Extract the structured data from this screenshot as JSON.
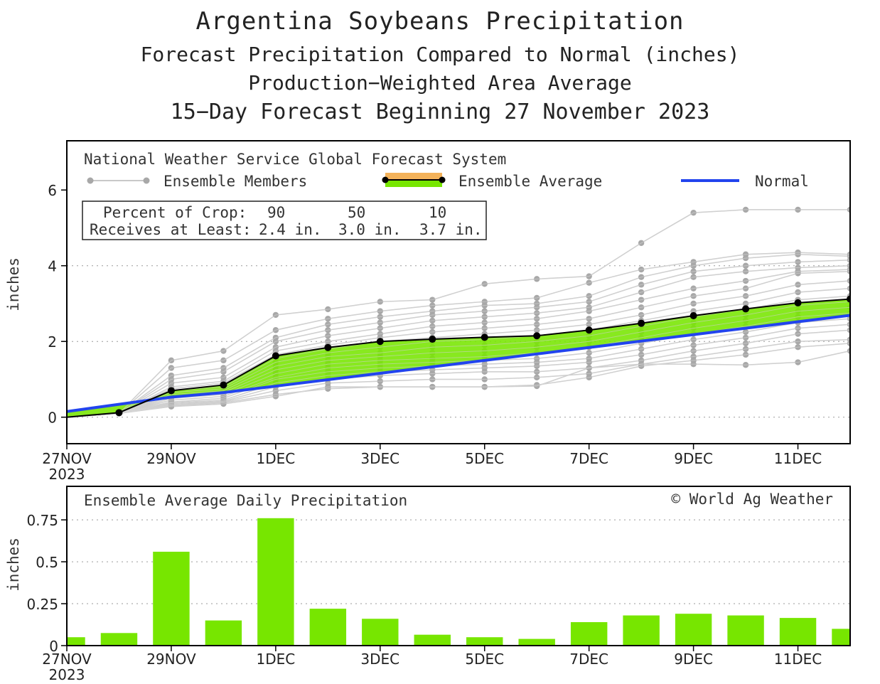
{
  "titles": {
    "main": "Argentina Soybeans Precipitation",
    "sub1": "Forecast Precipitation Compared to Normal (inches)",
    "sub2": "Production−Weighted Area Average",
    "sub3": "15−Day Forecast Beginning 27 November 2023"
  },
  "legend": {
    "source": "National Weather Service Global Forecast System",
    "members": "Ensemble Members",
    "average": "Ensemble Average",
    "normal": "Normal"
  },
  "crop_table": {
    "row1_label": "Percent of Crop:",
    "row2_label": "Receives at Least:",
    "percents": [
      "90",
      "50",
      "10"
    ],
    "amounts": [
      "2.4 in.",
      "3.0 in.",
      "3.7 in."
    ]
  },
  "colors": {
    "ensemble_fill": "#77e600",
    "normal": "#2244ee",
    "members": "#c8c8c8",
    "members_dots": "#a8a8a8",
    "average": "#000000",
    "bars": "#77e600"
  },
  "chart_data": [
    {
      "type": "line",
      "title": "Forecast Precipitation Compared to Normal",
      "ylabel": "inches",
      "xlim": [
        0,
        15
      ],
      "ylim": [
        -0.7,
        7.3
      ],
      "yticks": [
        0,
        2,
        4,
        6
      ],
      "xtick_pos": [
        0,
        2,
        4,
        6,
        8,
        10,
        12,
        14
      ],
      "xtick_labels": [
        "27NOV",
        "29NOV",
        "1DEC",
        "3DEC",
        "5DEC",
        "7DEC",
        "9DEC",
        "11DEC"
      ],
      "xtick_year": "2023",
      "grid": "dotted horizontal",
      "x": [
        0,
        1,
        2,
        3,
        4,
        5,
        6,
        7,
        8,
        9,
        10,
        11,
        12,
        13,
        14,
        15
      ],
      "series": [
        {
          "name": "Ensemble Average",
          "values": [
            0.0,
            0.12,
            0.7,
            0.85,
            1.62,
            1.84,
            2.0,
            2.06,
            2.11,
            2.15,
            2.3,
            2.48,
            2.68,
            2.86,
            3.02,
            3.12
          ]
        },
        {
          "name": "Normal",
          "values": [
            0.15,
            0.34,
            0.53,
            0.65,
            0.82,
            0.99,
            1.16,
            1.33,
            1.5,
            1.67,
            1.84,
            2.01,
            2.18,
            2.35,
            2.52,
            2.69
          ]
        }
      ],
      "members": [
        [
          0,
          0.1,
          1.5,
          1.75,
          2.7,
          2.85,
          3.05,
          3.1,
          3.52,
          3.65,
          3.72,
          4.6,
          5.4,
          5.48,
          5.48,
          5.48
        ],
        [
          0,
          0.1,
          1.3,
          1.5,
          2.3,
          2.6,
          2.8,
          2.95,
          3.05,
          3.15,
          3.55,
          3.9,
          4.1,
          4.3,
          4.35,
          4.3
        ],
        [
          0,
          0.1,
          1.1,
          1.3,
          2.1,
          2.45,
          2.65,
          2.8,
          2.95,
          3.0,
          3.2,
          3.7,
          4.0,
          4.2,
          4.3,
          4.25
        ],
        [
          0,
          0.1,
          1.0,
          1.2,
          2.0,
          2.3,
          2.5,
          2.7,
          2.8,
          2.9,
          3.05,
          3.5,
          3.85,
          4.0,
          4.1,
          4.15
        ],
        [
          0,
          0.1,
          0.9,
          1.05,
          1.85,
          2.15,
          2.35,
          2.55,
          2.65,
          2.75,
          2.9,
          3.3,
          3.7,
          3.85,
          3.95,
          4.0
        ],
        [
          0,
          0.1,
          0.8,
          0.95,
          1.75,
          2.0,
          2.2,
          2.4,
          2.5,
          2.6,
          2.8,
          3.1,
          3.4,
          3.6,
          3.85,
          3.9
        ],
        [
          0,
          0.1,
          0.75,
          0.9,
          1.65,
          1.9,
          2.1,
          2.25,
          2.35,
          2.45,
          2.6,
          2.9,
          3.2,
          3.4,
          3.8,
          3.85
        ],
        [
          0,
          0.1,
          0.7,
          0.8,
          1.55,
          1.8,
          2.0,
          2.1,
          2.2,
          2.3,
          2.45,
          2.7,
          3.0,
          3.2,
          3.5,
          3.6
        ],
        [
          0,
          0.1,
          0.65,
          0.75,
          1.45,
          1.7,
          1.85,
          2.0,
          2.05,
          2.15,
          2.3,
          2.55,
          2.8,
          3.0,
          3.3,
          3.4
        ],
        [
          0,
          0.1,
          0.6,
          0.7,
          1.35,
          1.6,
          1.7,
          1.85,
          1.9,
          2.0,
          2.15,
          2.4,
          2.65,
          2.85,
          3.1,
          3.2
        ],
        [
          0,
          0.1,
          0.55,
          0.65,
          1.25,
          1.5,
          1.6,
          1.7,
          1.75,
          1.85,
          2.0,
          2.25,
          2.5,
          2.7,
          2.95,
          3.05
        ],
        [
          0,
          0.1,
          0.5,
          0.6,
          1.15,
          1.4,
          1.5,
          1.55,
          1.6,
          1.7,
          1.85,
          2.1,
          2.35,
          2.55,
          2.8,
          2.9
        ],
        [
          0,
          0.1,
          0.45,
          0.55,
          1.05,
          1.3,
          1.4,
          1.45,
          1.5,
          1.55,
          1.7,
          1.95,
          2.2,
          2.4,
          2.65,
          2.75
        ],
        [
          0,
          0.1,
          0.4,
          0.5,
          1.0,
          1.2,
          1.3,
          1.35,
          1.4,
          1.45,
          1.55,
          1.8,
          2.05,
          2.25,
          2.5,
          2.6
        ],
        [
          0,
          0.1,
          0.38,
          0.45,
          0.9,
          1.1,
          1.2,
          1.25,
          1.3,
          1.35,
          1.45,
          1.65,
          1.9,
          2.1,
          2.35,
          2.45
        ],
        [
          0,
          0.1,
          0.35,
          0.42,
          0.8,
          1.0,
          1.1,
          1.15,
          1.2,
          1.2,
          1.3,
          1.5,
          1.75,
          1.95,
          2.2,
          2.3
        ],
        [
          0,
          0.1,
          0.32,
          0.4,
          0.7,
          0.9,
          0.95,
          1.0,
          1.0,
          1.05,
          1.15,
          1.4,
          1.6,
          1.8,
          2.0,
          2.05
        ],
        [
          0,
          0.1,
          0.3,
          0.38,
          0.6,
          0.75,
          0.8,
          0.8,
          0.8,
          0.85,
          1.05,
          1.35,
          1.5,
          1.65,
          1.85,
          1.95
        ],
        [
          0,
          0.1,
          0.28,
          0.35,
          0.55,
          0.8,
          0.8,
          0.8,
          0.8,
          0.82,
          1.3,
          1.4,
          1.4,
          1.38,
          1.45,
          1.75
        ]
      ]
    },
    {
      "type": "bar",
      "title": "Ensemble Average Daily Precipitation",
      "ylabel": "inches",
      "xlim": [
        0,
        15
      ],
      "ylim": [
        0,
        0.95
      ],
      "yticks": [
        0,
        0.25,
        0.5,
        0.75
      ],
      "ytick_labels": [
        "0",
        "0.25",
        "0.5",
        "0.75"
      ],
      "xtick_pos": [
        0,
        2,
        4,
        6,
        8,
        10,
        12,
        14
      ],
      "xtick_labels": [
        "27NOV",
        "29NOV",
        "1DEC",
        "3DEC",
        "5DEC",
        "7DEC",
        "9DEC",
        "11DEC"
      ],
      "xtick_year": "2023",
      "x": [
        0,
        1,
        2,
        3,
        4,
        5,
        6,
        7,
        8,
        9,
        10,
        11,
        12,
        13,
        14,
        15
      ],
      "values": [
        0.05,
        0.075,
        0.56,
        0.15,
        0.76,
        0.22,
        0.16,
        0.065,
        0.05,
        0.04,
        0.14,
        0.18,
        0.19,
        0.18,
        0.165,
        0.1
      ],
      "annotation": "© World Ag Weather"
    }
  ]
}
